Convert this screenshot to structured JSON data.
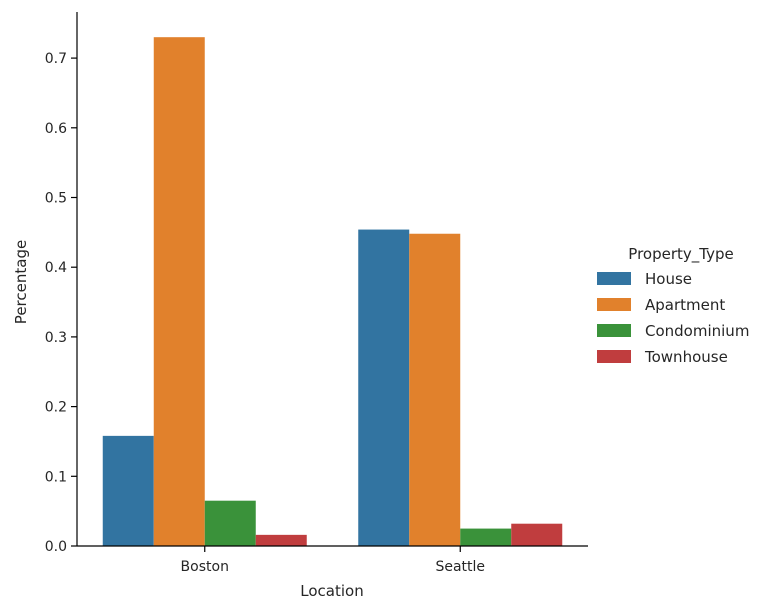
{
  "chart_data": {
    "type": "bar",
    "title": "",
    "xlabel": "Location",
    "ylabel": "Percentage",
    "categories": [
      "Boston",
      "Seattle"
    ],
    "ylim": [
      0,
      0.77
    ],
    "yticks": [
      0.0,
      0.1,
      0.2,
      0.3,
      0.4,
      0.5,
      0.6,
      0.7
    ],
    "ytick_labels": [
      "0.0",
      "0.1",
      "0.2",
      "0.3",
      "0.4",
      "0.5",
      "0.6",
      "0.7"
    ],
    "grid": false,
    "legend": {
      "title": "Property_Type",
      "placement": "right"
    },
    "series": [
      {
        "name": "House",
        "color": "#3274a1",
        "values": [
          0.158,
          0.454
        ]
      },
      {
        "name": "Apartment",
        "color": "#e1812c",
        "values": [
          0.73,
          0.448
        ]
      },
      {
        "name": "Condominium",
        "color": "#3a923a",
        "values": [
          0.065,
          0.025
        ]
      },
      {
        "name": "Townhouse",
        "color": "#c03d3e",
        "values": [
          0.016,
          0.032
        ]
      }
    ]
  }
}
